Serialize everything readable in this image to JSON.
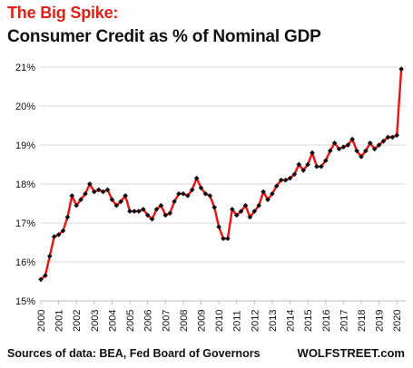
{
  "chart_data": {
    "type": "line",
    "title": "The Big Spike:",
    "subtitle": "Consumer Credit as % of Nominal GDP",
    "source": "Sources of data: BEA, Fed Board of Governors",
    "brand": "WOLFSTREET.com",
    "xlabel": "",
    "ylabel": "",
    "x_ticks": [
      "2000",
      "2001",
      "2002",
      "2003",
      "2004",
      "2005",
      "2006",
      "2007",
      "2008",
      "2009",
      "2010",
      "2011",
      "2012",
      "2013",
      "2014",
      "2015",
      "2016",
      "2017",
      "2018",
      "2019",
      "2020"
    ],
    "y_ticks": [
      "15%",
      "16%",
      "17%",
      "18%",
      "19%",
      "20%",
      "21%"
    ],
    "ylim": [
      15,
      21
    ],
    "xlim": [
      2000,
      2020.5
    ],
    "grid": "horizontal",
    "line_color": "#ee1111",
    "marker_color": "#111111",
    "series": [
      {
        "x": [
          2000.0,
          2000.25,
          2000.5,
          2000.75,
          2001.0,
          2001.25,
          2001.5,
          2001.75,
          2002.0,
          2002.25,
          2002.5,
          2002.75,
          2003.0,
          2003.25,
          2003.5,
          2003.75,
          2004.0,
          2004.25,
          2004.5,
          2004.75,
          2005.0,
          2005.25,
          2005.5,
          2005.75,
          2006.0,
          2006.25,
          2006.5,
          2006.75,
          2007.0,
          2007.25,
          2007.5,
          2007.75,
          2008.0,
          2008.25,
          2008.5,
          2008.75,
          2009.0,
          2009.25,
          2009.5,
          2009.75,
          2010.0,
          2010.25,
          2010.5,
          2010.75,
          2011.0,
          2011.25,
          2011.5,
          2011.75,
          2012.0,
          2012.25,
          2012.5,
          2012.75,
          2013.0,
          2013.25,
          2013.5,
          2013.75,
          2014.0,
          2014.25,
          2014.5,
          2014.75,
          2015.0,
          2015.25,
          2015.5,
          2015.75,
          2016.0,
          2016.25,
          2016.5,
          2016.75,
          2017.0,
          2017.25,
          2017.5,
          2017.75,
          2018.0,
          2018.25,
          2018.5,
          2018.75,
          2019.0,
          2019.25,
          2019.5,
          2019.75,
          2020.0,
          2020.25
        ],
        "values": [
          15.55,
          15.65,
          16.15,
          16.65,
          16.7,
          16.8,
          17.15,
          17.7,
          17.45,
          17.6,
          17.75,
          18.0,
          17.8,
          17.85,
          17.8,
          17.85,
          17.6,
          17.45,
          17.55,
          17.7,
          17.3,
          17.3,
          17.3,
          17.35,
          17.2,
          17.1,
          17.35,
          17.45,
          17.2,
          17.25,
          17.55,
          17.75,
          17.75,
          17.7,
          17.85,
          18.15,
          17.9,
          17.75,
          17.7,
          17.4,
          16.9,
          16.6,
          16.6,
          17.35,
          17.2,
          17.3,
          17.45,
          17.15,
          17.3,
          17.45,
          17.8,
          17.6,
          17.75,
          17.95,
          18.1,
          18.1,
          18.15,
          18.25,
          18.5,
          18.35,
          18.5,
          18.8,
          18.45,
          18.45,
          18.6,
          18.85,
          19.05,
          18.9,
          18.95,
          19.0,
          19.15,
          18.85,
          18.7,
          18.85,
          19.05,
          18.9,
          19.0,
          19.1,
          19.2,
          19.2,
          19.25,
          20.95
        ]
      }
    ]
  }
}
